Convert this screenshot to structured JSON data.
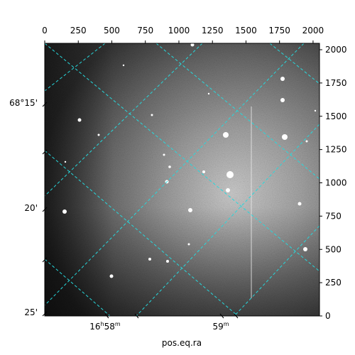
{
  "figure": {
    "xlabel": "pos.eq.ra",
    "pixel_axis_ticks": [
      "0",
      "250",
      "500",
      "750",
      "1000",
      "1250",
      "1500",
      "1750",
      "2000"
    ],
    "dec_labels": [
      "68°15'",
      "20'",
      "25'"
    ],
    "ra_labels": [
      {
        "main": "16",
        "h": "h",
        "min": "58",
        "m": "m"
      },
      {
        "main": "",
        "h": "",
        "min": "59",
        "m": "m"
      }
    ],
    "grid_color": "#27d8dc"
  }
}
